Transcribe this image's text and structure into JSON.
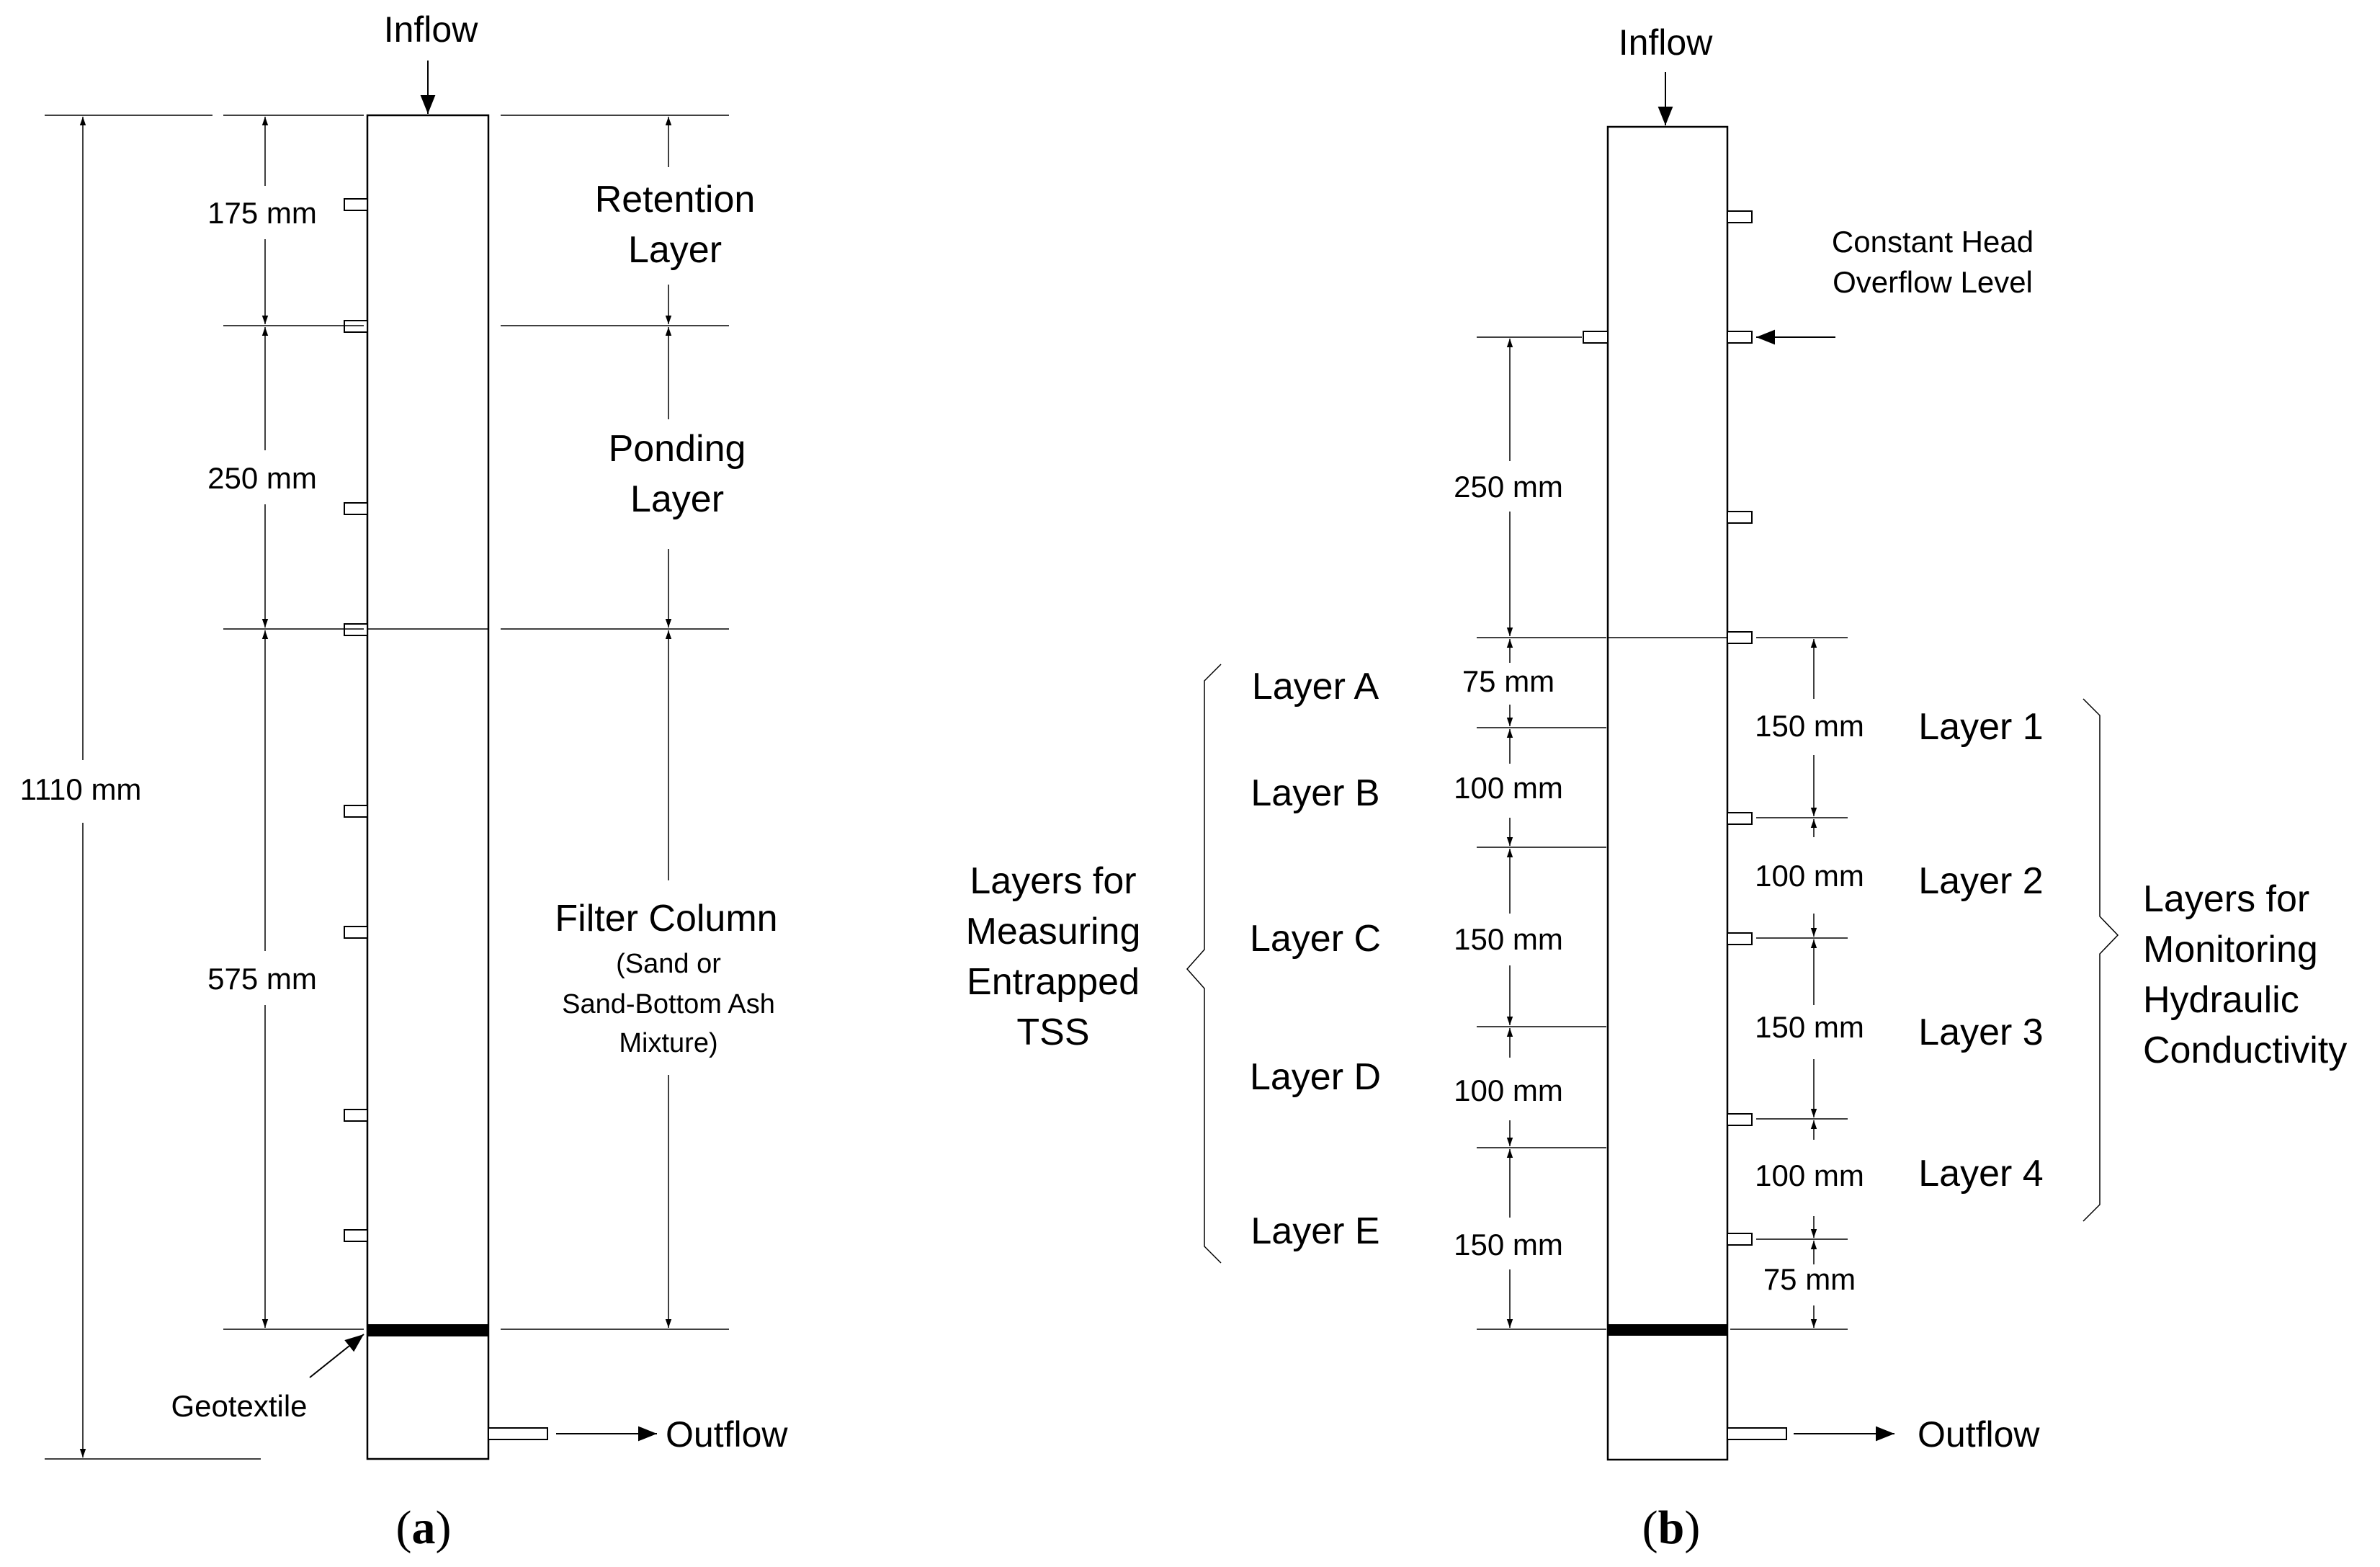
{
  "panel_a": {
    "inflow": "Inflow",
    "outflow": "Outflow",
    "total_dim": "1110 mm",
    "dim_retention": "175 mm",
    "dim_ponding": "250 mm",
    "dim_filter": "575 mm",
    "retention_line1": "Retention",
    "retention_line2": "Layer",
    "ponding_line1": "Ponding",
    "ponding_line2": "Layer",
    "filter_title": "Filter Column",
    "filter_sub1": "(Sand or",
    "filter_sub2": "Sand-Bottom Ash",
    "filter_sub3": "Mixture)",
    "geotextile": "Geotextile",
    "caption_open": "(",
    "caption_letter": "a",
    "caption_close": ")"
  },
  "panel_b": {
    "inflow": "Inflow",
    "outflow": "Outflow",
    "constant_head_line1": "Constant Head",
    "constant_head_line2": "Overflow Level",
    "dim_ponding": "250 mm",
    "left_layers": [
      {
        "name": "Layer A",
        "dim": "75 mm"
      },
      {
        "name": "Layer B",
        "dim": "100 mm"
      },
      {
        "name": "Layer C",
        "dim": "150 mm"
      },
      {
        "name": "Layer D",
        "dim": "100 mm"
      },
      {
        "name": "Layer E",
        "dim": "150 mm"
      }
    ],
    "right_layers": [
      {
        "name": "Layer 1",
        "dim": "150 mm"
      },
      {
        "name": "Layer 2",
        "dim": "100 mm"
      },
      {
        "name": "Layer 3",
        "dim": "150 mm"
      },
      {
        "name": "Layer 4",
        "dim": "100 mm"
      }
    ],
    "right_bottom_dim": "75 mm",
    "tss_label": [
      "Layers for",
      "Measuring",
      "Entrapped",
      "TSS"
    ],
    "hydraulic_label": [
      "Layers for",
      "Monitoring",
      "Hydraulic",
      "Conductivity"
    ],
    "caption_open": "(",
    "caption_letter": "b",
    "caption_close": ")"
  }
}
